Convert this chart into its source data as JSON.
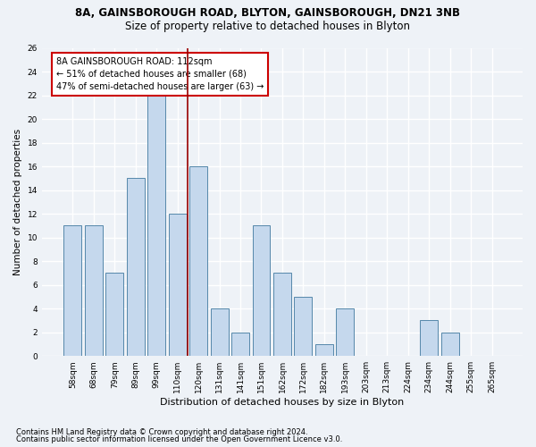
{
  "title1": "8A, GAINSBOROUGH ROAD, BLYTON, GAINSBOROUGH, DN21 3NB",
  "title2": "Size of property relative to detached houses in Blyton",
  "xlabel": "Distribution of detached houses by size in Blyton",
  "ylabel": "Number of detached properties",
  "categories": [
    "58sqm",
    "68sqm",
    "79sqm",
    "89sqm",
    "99sqm",
    "110sqm",
    "120sqm",
    "131sqm",
    "141sqm",
    "151sqm",
    "162sqm",
    "172sqm",
    "182sqm",
    "193sqm",
    "203sqm",
    "213sqm",
    "224sqm",
    "234sqm",
    "244sqm",
    "255sqm",
    "265sqm"
  ],
  "values": [
    11,
    11,
    7,
    15,
    22,
    12,
    16,
    4,
    2,
    11,
    7,
    5,
    1,
    4,
    0,
    0,
    0,
    3,
    2,
    0,
    0
  ],
  "bar_color": "#c5d8ed",
  "bar_edge_color": "#5588aa",
  "highlight_index": 5,
  "highlight_line_color": "#990000",
  "annotation_line1": "8A GAINSBOROUGH ROAD: 112sqm",
  "annotation_line2": "← 51% of detached houses are smaller (68)",
  "annotation_line3": "47% of semi-detached houses are larger (63) →",
  "annotation_box_color": "#ffffff",
  "annotation_box_edge": "#cc0000",
  "ylim": [
    0,
    26
  ],
  "yticks": [
    0,
    2,
    4,
    6,
    8,
    10,
    12,
    14,
    16,
    18,
    20,
    22,
    24,
    26
  ],
  "footer1": "Contains HM Land Registry data © Crown copyright and database right 2024.",
  "footer2": "Contains public sector information licensed under the Open Government Licence v3.0.",
  "background_color": "#eef2f7",
  "grid_color": "#ffffff",
  "title1_fontsize": 8.5,
  "title2_fontsize": 8.5,
  "tick_fontsize": 6.5,
  "ylabel_fontsize": 7.5,
  "xlabel_fontsize": 8,
  "annotation_fontsize": 7,
  "footer_fontsize": 6
}
